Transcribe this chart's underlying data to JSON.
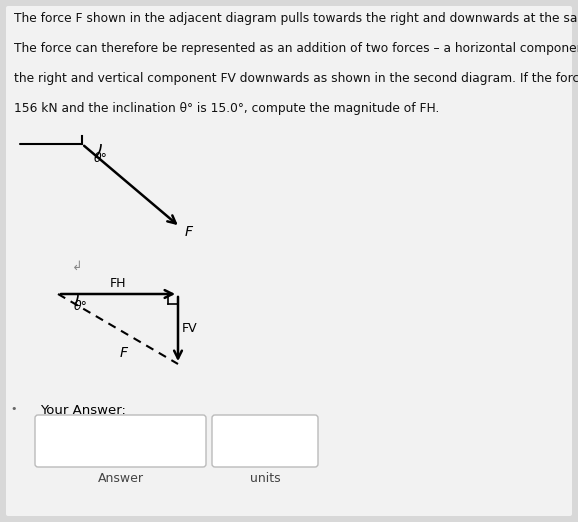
{
  "bg_color": "#d8d8d8",
  "panel_color": "#f0f0f0",
  "text_color": "#111111",
  "title_lines": [
    "The force F shown in the adjacent diagram pulls towards the right and downwards at the same time.",
    "The force can therefore be represented as an addition of two forces – a horizontal component FH to",
    "the right and vertical component FV downwards as shown in the second diagram. If the force F =",
    "156 kN and the inclination θ° is 15.0°, compute the magnitude of FH."
  ],
  "diag1_theta": "θ°",
  "diag1_F": "F",
  "diag2_theta": "θ°",
  "diag2_FH": "FH",
  "diag2_FV": "FV",
  "diag2_F": "F",
  "your_answer": "Your Answer:",
  "answer_label": "Answer",
  "units_label": "units"
}
